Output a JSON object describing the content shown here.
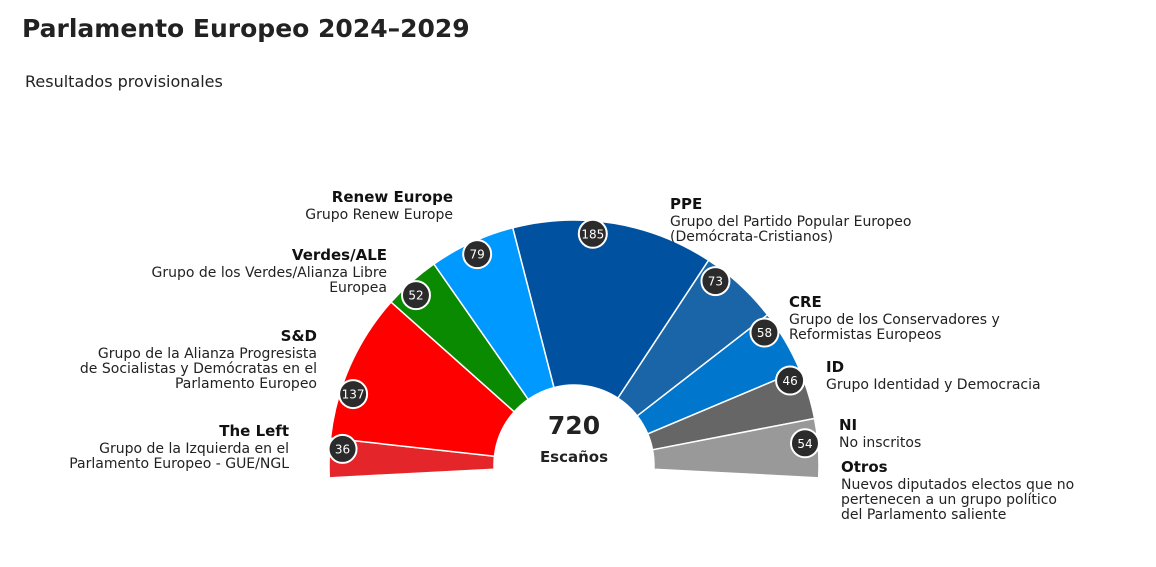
{
  "title": "Parlamento Europeo 2024–2029",
  "subtitle": "Resultados provisionales",
  "chart_data": {
    "type": "pie",
    "subtype": "parliament-semicircle",
    "total": 720,
    "total_label": "Escaños",
    "series": [
      {
        "abbr": "The Left",
        "description": [
          "Grupo de la Izquierda en el",
          "Parlamento Europeo - GUE/NGL"
        ],
        "seats": 36,
        "color": "#e4252a"
      },
      {
        "abbr": "S&D",
        "description": [
          "Grupo de la Alianza Progresista",
          "de Socialistas y Demócratas en el",
          "Parlamento Europeo"
        ],
        "seats": 137,
        "color": "#ff0000"
      },
      {
        "abbr": "Verdes/ALE",
        "description": [
          "Grupo de los Verdes/Alianza Libre",
          "Europea"
        ],
        "seats": 52,
        "color": "#0a8a00"
      },
      {
        "abbr": "Renew Europe",
        "description": [
          "Grupo Renew Europe"
        ],
        "seats": 79,
        "color": "#0099ff"
      },
      {
        "abbr": "PPE",
        "description": [
          "Grupo del Partido Popular Europeo",
          "(Demócrata-Cristianos)"
        ],
        "seats": 185,
        "color": "#0052a0"
      },
      {
        "abbr": "CRE",
        "description": [
          "Grupo de los Conservadores y",
          "Reformistas Europeos"
        ],
        "seats": 73,
        "color": "#1a64a8"
      },
      {
        "abbr": "ID",
        "description": [
          "Grupo Identidad y Democracia"
        ],
        "seats": 58,
        "color": "#0077cc"
      },
      {
        "abbr": "NI",
        "description": [
          "No inscritos"
        ],
        "seats": 46,
        "color": "#666666"
      },
      {
        "abbr": "Otros",
        "description": [
          "Nuevos diputados electos que no",
          "pertenecen a un grupo político",
          "del Parlamento saliente"
        ],
        "seats": 54,
        "color": "#999999"
      }
    ]
  }
}
